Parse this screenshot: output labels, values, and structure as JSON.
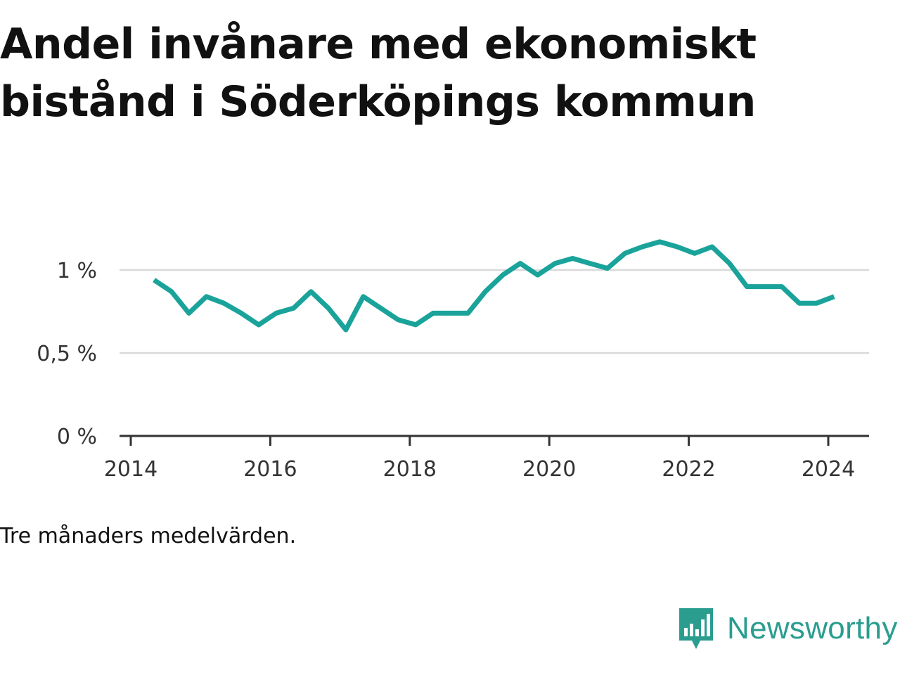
{
  "title": "Andel invånare med ekonomiskt bistånd i Söderköpings kommun",
  "note": "Tre månaders medelvärden.",
  "brand": {
    "name": "Newsworthy",
    "icon": "newsworthy-logo-icon",
    "color": "#2a9d8f"
  },
  "chart_data": {
    "type": "line",
    "title": "Andel invånare med ekonomiskt bistånd i Söderköpings kommun",
    "xlabel": "",
    "ylabel": "",
    "x_ticks": [
      "2014",
      "2016",
      "2018",
      "2020",
      "2022",
      "2024"
    ],
    "y_ticks": [
      "0 %",
      "0,5 %",
      "1 %"
    ],
    "y_tick_values": [
      0,
      0.5,
      1
    ],
    "ylim": [
      0,
      1.3
    ],
    "grid": true,
    "line_color": "#1aa39a",
    "series": [
      {
        "x": [
          "2014-05",
          "2014-08",
          "2014-11",
          "2015-02",
          "2015-05",
          "2015-08",
          "2015-11",
          "2016-02",
          "2016-05",
          "2016-08",
          "2016-11",
          "2017-02",
          "2017-05",
          "2017-08",
          "2017-11",
          "2018-02",
          "2018-05",
          "2018-08",
          "2018-11",
          "2019-02",
          "2019-05",
          "2019-08",
          "2019-11",
          "2020-02",
          "2020-05",
          "2020-08",
          "2020-11",
          "2021-02",
          "2021-05",
          "2021-08",
          "2021-11",
          "2022-02",
          "2022-05",
          "2022-08",
          "2022-11",
          "2023-02",
          "2023-05",
          "2023-08",
          "2023-11",
          "2024-02"
        ],
        "values": [
          0.94,
          0.87,
          0.74,
          0.84,
          0.8,
          0.74,
          0.67,
          0.74,
          0.77,
          0.87,
          0.77,
          0.64,
          0.84,
          0.77,
          0.7,
          0.67,
          0.74,
          0.74,
          0.74,
          0.87,
          0.97,
          1.04,
          0.97,
          1.04,
          1.07,
          1.04,
          1.01,
          1.1,
          1.14,
          1.17,
          1.14,
          1.1,
          1.14,
          1.04,
          0.9,
          0.9,
          0.9,
          0.8,
          0.8,
          0.84
        ]
      }
    ]
  }
}
